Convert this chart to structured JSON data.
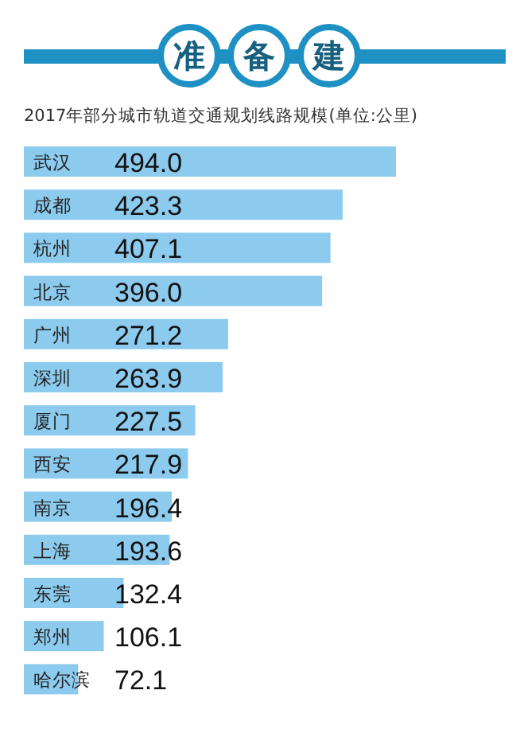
{
  "chart_data": {
    "type": "bar",
    "orientation": "horizontal",
    "title": "准备建",
    "subtitle": "2017年部分城市轨道交通规划线路规模(单位:公里)",
    "categories": [
      "武汉",
      "成都",
      "杭州",
      "北京",
      "广州",
      "深圳",
      "厦门",
      "西安",
      "南京",
      "上海",
      "东莞",
      "郑州",
      "哈尔滨"
    ],
    "values": [
      494.0,
      423.3,
      407.1,
      396.0,
      271.2,
      263.9,
      227.5,
      217.9,
      196.4,
      193.6,
      132.4,
      106.1,
      72.1
    ],
    "value_labels": [
      "494.0",
      "423.3",
      "407.1",
      "396.0",
      "271.2",
      "263.9",
      "227.5",
      "217.9",
      "196.4",
      "193.6",
      "132.4",
      "106.1",
      "72.1"
    ],
    "color": "#8ccbee"
  }
}
